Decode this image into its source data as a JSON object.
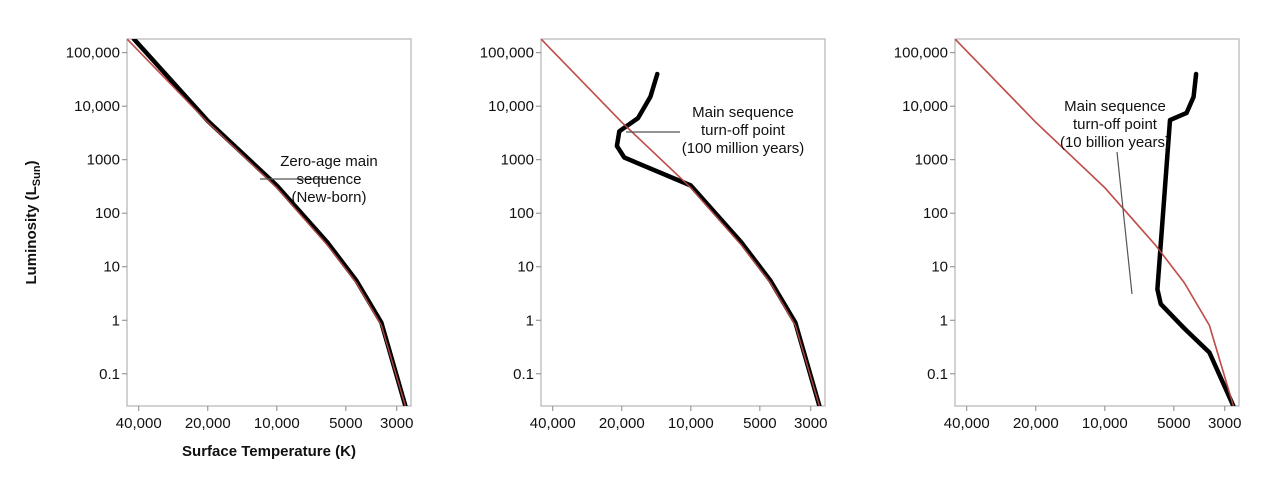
{
  "chart_data": [
    {
      "type": "line",
      "panel": 1,
      "title": "",
      "xlabel": "Surface Temperature (K)",
      "ylabel": "Luminosity (L",
      "ylabel_sub": "Sun",
      "ylabel_close": ")",
      "x_scale": "log",
      "x_reversed": true,
      "y_scale": "log",
      "xlim": [
        45000,
        2600
      ],
      "ylim": [
        0.025,
        180000
      ],
      "x_ticks": [
        40000,
        20000,
        10000,
        5000,
        3000
      ],
      "x_tick_labels": [
        "40,000",
        "20,000",
        "10,000",
        "5000",
        "3000"
      ],
      "y_ticks": [
        100000,
        10000,
        1000,
        100,
        10,
        1,
        0.1
      ],
      "y_tick_labels": [
        "100,000",
        "10,000",
        "1000",
        "100",
        "10",
        "1",
        "0.1"
      ],
      "series": [
        {
          "role": "zams",
          "color": "#c0504d",
          "points": [
            [
              45000,
              180000
            ],
            [
              20000,
              5000
            ],
            [
              10000,
              300
            ],
            [
              6000,
              25
            ],
            [
              4500,
              5
            ],
            [
              3500,
              0.8
            ],
            [
              2750,
              0.025
            ]
          ]
        },
        {
          "role": "evolved",
          "color": "#000000",
          "points": [
            [
              42000,
              180000
            ],
            [
              20000,
              5300
            ],
            [
              10000,
              330
            ],
            [
              6000,
              28
            ],
            [
              4500,
              5.5
            ],
            [
              3500,
              0.9
            ],
            [
              2750,
              0.025
            ]
          ]
        }
      ],
      "annotations": [
        {
          "lines": [
            "Zero-age main",
            "sequence",
            "(New-born)"
          ],
          "point": [
            15000,
            1300
          ]
        }
      ]
    },
    {
      "type": "line",
      "panel": 2,
      "title": "",
      "xlabel": "",
      "ylabel": "",
      "x_scale": "log",
      "x_reversed": true,
      "y_scale": "log",
      "xlim": [
        45000,
        2600
      ],
      "ylim": [
        0.025,
        180000
      ],
      "x_ticks": [
        40000,
        20000,
        10000,
        5000,
        3000
      ],
      "x_tick_labels": [
        "40,000",
        "20,000",
        "10,000",
        "5000",
        "3000"
      ],
      "y_ticks": [
        100000,
        10000,
        1000,
        100,
        10,
        1,
        0.1
      ],
      "y_tick_labels": [
        "100,000",
        "10,000",
        "1000",
        "100",
        "10",
        "1",
        "0.1"
      ],
      "series": [
        {
          "role": "zams",
          "color": "#c0504d",
          "points": [
            [
              45000,
              180000
            ],
            [
              20000,
              5000
            ],
            [
              10000,
              300
            ],
            [
              6000,
              25
            ],
            [
              4500,
              5
            ],
            [
              3500,
              0.8
            ],
            [
              2750,
              0.025
            ]
          ]
        },
        {
          "role": "evolved",
          "color": "#000000",
          "points": [
            [
              14000,
              40000
            ],
            [
              15000,
              15000
            ],
            [
              17000,
              6000
            ],
            [
              20500,
              3400
            ],
            [
              21000,
              1800
            ],
            [
              19500,
              1100
            ],
            [
              10000,
              330
            ],
            [
              6000,
              28
            ],
            [
              4500,
              5.5
            ],
            [
              3500,
              0.9
            ],
            [
              2750,
              0.025
            ]
          ]
        }
      ],
      "annotations": [
        {
          "lines": [
            "Main sequence",
            "turn-off point",
            "(100 million years)"
          ],
          "point": [
            20500,
            3400
          ]
        }
      ]
    },
    {
      "type": "line",
      "panel": 3,
      "title": "",
      "xlabel": "",
      "ylabel": "",
      "x_scale": "log",
      "x_reversed": true,
      "y_scale": "log",
      "xlim": [
        45000,
        2600
      ],
      "ylim": [
        0.025,
        180000
      ],
      "x_ticks": [
        40000,
        20000,
        10000,
        5000,
        3000
      ],
      "x_tick_labels": [
        "40,000",
        "20,000",
        "10,000",
        "5000",
        "3000"
      ],
      "y_ticks": [
        100000,
        10000,
        1000,
        100,
        10,
        1,
        0.1
      ],
      "y_tick_labels": [
        "100,000",
        "10,000",
        "1000",
        "100",
        "10",
        "1",
        "0.1"
      ],
      "series": [
        {
          "role": "zams",
          "color": "#c0504d",
          "points": [
            [
              45000,
              180000
            ],
            [
              20000,
              5000
            ],
            [
              10000,
              300
            ],
            [
              6000,
              25
            ],
            [
              4500,
              5
            ],
            [
              3500,
              0.8
            ],
            [
              2750,
              0.025
            ]
          ]
        },
        {
          "role": "evolved",
          "color": "#000000",
          "points": [
            [
              4000,
              40000
            ],
            [
              4100,
              15000
            ],
            [
              4400,
              7500
            ],
            [
              5200,
              5500
            ],
            [
              5900,
              3.8
            ],
            [
              5700,
              2
            ],
            [
              4500,
              0.7
            ],
            [
              3500,
              0.25
            ],
            [
              2750,
              0.025
            ]
          ]
        }
      ],
      "annotations": [
        {
          "lines": [
            "Main sequence",
            "turn-off point",
            "(10 billion years)"
          ],
          "point": [
            6000,
            2.8
          ]
        }
      ]
    }
  ]
}
